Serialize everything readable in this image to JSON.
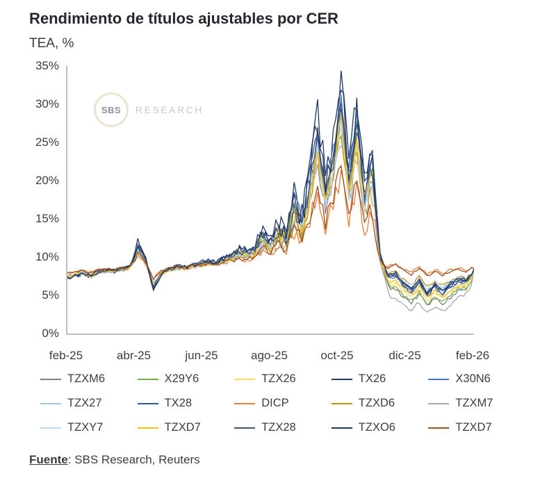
{
  "title": "Rendimiento de títulos ajustables por CER",
  "subtitle": "TEA, %",
  "watermark": {
    "logo_text": "SBS",
    "label": "RESEARCH"
  },
  "footer": {
    "source_label": "Fuente",
    "source_rest": ": SBS Research, Reuters"
  },
  "chart_data": {
    "type": "line",
    "title": "Rendimiento de títulos ajustables por CER",
    "ylabel": "TEA, %",
    "ylim": [
      0,
      35
    ],
    "grid": false,
    "legend_position": "bottom",
    "x_unit": "weeks from feb-25 (0 = feb-25, 52 = feb-26)",
    "x_tick_labels": [
      "feb-25",
      "abr-25",
      "jun-25",
      "ago-25",
      "oct-25",
      "dic-25",
      "feb-26"
    ],
    "y_tick_labels": [
      "0%",
      "5%",
      "10%",
      "15%",
      "20%",
      "25%",
      "30%",
      "35%"
    ],
    "base_curve_pct": [
      7.2,
      7.6,
      7.9,
      7.5,
      8.1,
      8.3,
      8.1,
      8.5,
      8.6,
      11.4,
      9.6,
      6.0,
      7.8,
      8.4,
      8.7,
      8.6,
      8.9,
      9.1,
      9.4,
      9.2,
      9.7,
      10.2,
      10.8,
      10.4,
      11.0,
      12.6,
      11.8,
      13.6,
      12.6,
      16.8,
      14.6,
      19.5,
      26.5,
      18.5,
      23.0,
      30.5,
      20.0,
      27.5,
      18.0,
      21.5,
      10.0,
      8.0,
      8.4,
      7.2,
      6.4,
      7.6,
      5.9,
      7.0,
      6.2,
      7.1,
      7.6,
      7.3,
      8.4
    ],
    "series": [
      {
        "name": "TZXM6",
        "color": "#7f7f7f",
        "scale": 0.9,
        "offset": 0.0,
        "late": -2.5,
        "amp": 0.85
      },
      {
        "name": "X29Y6",
        "color": "#70ad47",
        "scale": 0.95,
        "offset": 0.0,
        "late": -2.2,
        "amp": 0.7
      },
      {
        "name": "TZX26",
        "color": "#ffd966",
        "scale": 0.85,
        "offset": 0.0,
        "late": -1.8,
        "amp": 0.7
      },
      {
        "name": "TX26",
        "color": "#1f3864",
        "scale": 1.15,
        "offset": 0.0,
        "late": -0.8,
        "amp": 1.0
      },
      {
        "name": "X30N6",
        "color": "#4472c4",
        "scale": 1.0,
        "offset": 0.0,
        "late": -1.0,
        "amp": 0.8
      },
      {
        "name": "TZX27",
        "color": "#9dc3e6",
        "scale": 0.9,
        "offset": 0.0,
        "late": -0.6,
        "amp": 0.6
      },
      {
        "name": "TX28",
        "color": "#2f5597",
        "scale": 1.05,
        "offset": 0.0,
        "late": -0.5,
        "amp": 0.8
      },
      {
        "name": "DICP",
        "color": "#ed7d31",
        "scale": 0.55,
        "offset": 0.3,
        "late": 0.6,
        "amp": 0.6
      },
      {
        "name": "TZXD6",
        "color": "#bf9000",
        "scale": 0.8,
        "offset": 0.0,
        "late": -0.3,
        "amp": 0.7
      },
      {
        "name": "TZXM7",
        "color": "#a6a6a6",
        "scale": 0.8,
        "offset": 0.0,
        "late": -3.6,
        "amp": 0.95
      },
      {
        "name": "TZXY7",
        "color": "#bdd7ee",
        "scale": 0.85,
        "offset": 0.0,
        "late": -0.4,
        "amp": 0.55
      },
      {
        "name": "TZXD7",
        "color": "#ffc000",
        "scale": 0.9,
        "offset": 0.0,
        "late": -1.5,
        "amp": 0.7
      },
      {
        "name": "TZX28",
        "color": "#44546a",
        "scale": 1.0,
        "offset": 0.0,
        "late": -0.7,
        "amp": 0.8
      },
      {
        "name": "TZXO6",
        "color": "#203864",
        "scale": 1.1,
        "offset": 0.0,
        "late": -0.4,
        "amp": 1.0
      },
      {
        "name": "TZXD7",
        "color": "#9c4d1e",
        "scale": 0.6,
        "offset": 0.3,
        "late": 0.4,
        "amp": 0.6
      }
    ]
  }
}
